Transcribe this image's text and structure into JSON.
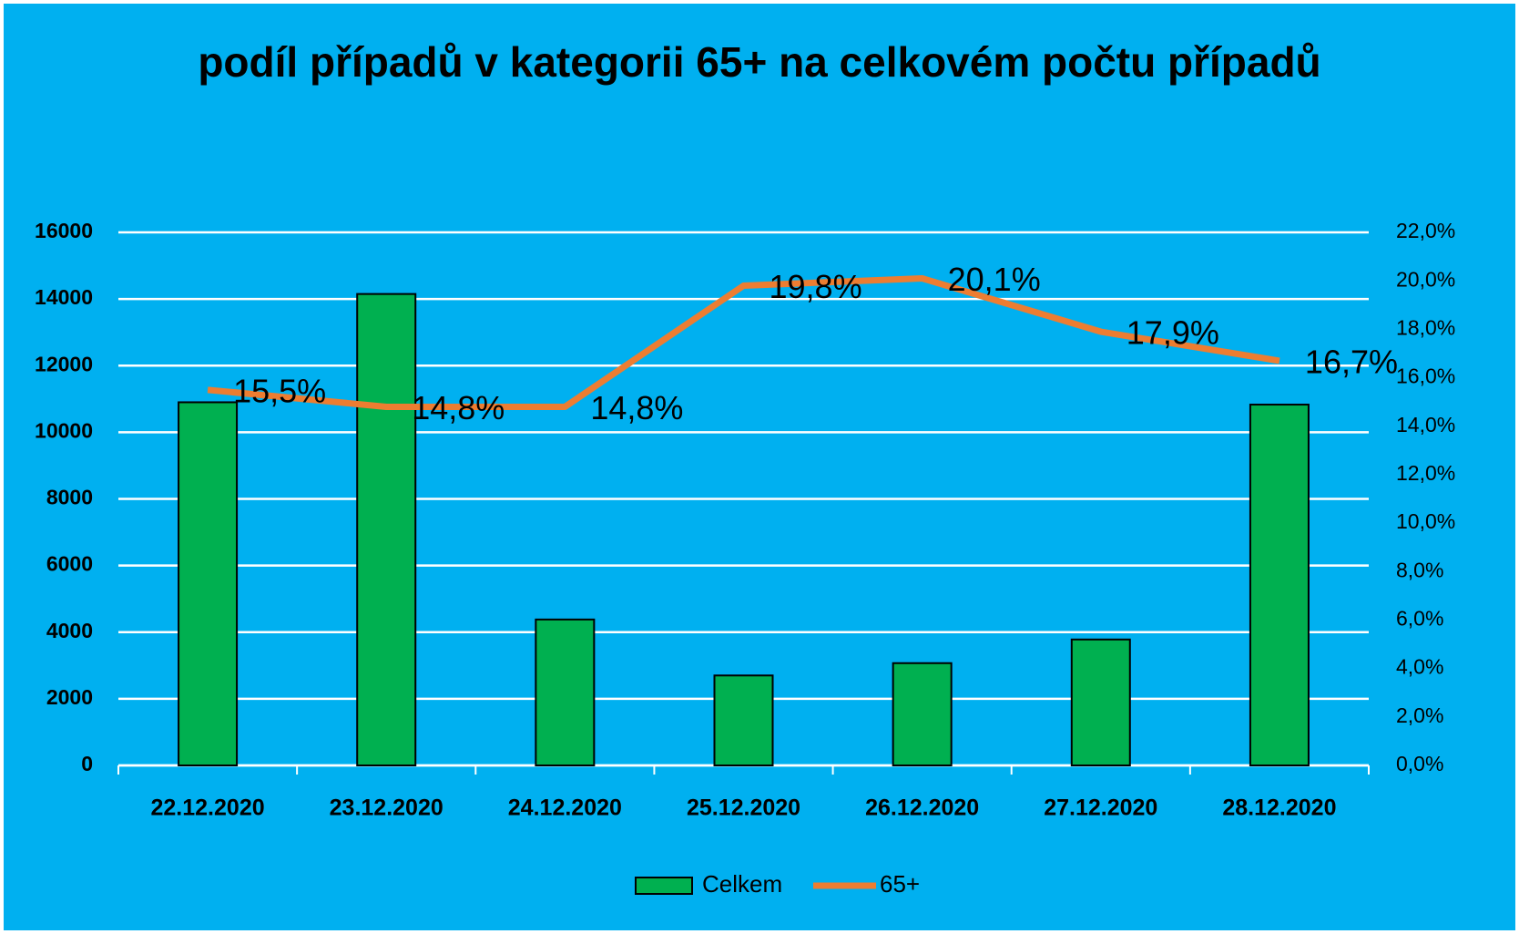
{
  "chart_data": {
    "type": "bar_line",
    "title": "podíl případů v kategorii 65+ na celkovém počtu případů",
    "categories": [
      "22.12.2020",
      "23.12.2020",
      "24.12.2020",
      "25.12.2020",
      "26.12.2020",
      "27.12.2020",
      "28.12.2020"
    ],
    "series": [
      {
        "name": "Celkem",
        "type": "bar",
        "color": "#00b050",
        "values": [
          10900,
          14150,
          4380,
          2700,
          3070,
          3780,
          10830
        ]
      },
      {
        "name": "65+",
        "type": "line",
        "axis": "y2",
        "color": "#ed7d31",
        "values": [
          15.5,
          14.8,
          14.8,
          19.8,
          20.1,
          17.9,
          16.7
        ],
        "value_labels": [
          "15,5%",
          "14,8%",
          "14,8%",
          "19,8%",
          "20,1%",
          "17,9%",
          "16,7%"
        ]
      }
    ],
    "ylim": [
      0,
      16000
    ],
    "yticks": [
      0,
      2000,
      4000,
      6000,
      8000,
      10000,
      12000,
      14000,
      16000
    ],
    "y2lim": [
      0,
      22
    ],
    "y2ticks": [
      {
        "value": 0,
        "label": "0,0%"
      },
      {
        "value": 2,
        "label": "2,0%"
      },
      {
        "value": 4,
        "label": "4,0%"
      },
      {
        "value": 6,
        "label": "6,0%"
      },
      {
        "value": 8,
        "label": "8,0%"
      },
      {
        "value": 10,
        "label": "10,0%"
      },
      {
        "value": 12,
        "label": "12,0%"
      },
      {
        "value": 14,
        "label": "14,0%"
      },
      {
        "value": 16,
        "label": "16,0%"
      },
      {
        "value": 18,
        "label": "18,0%"
      },
      {
        "value": 20,
        "label": "20,0%"
      },
      {
        "value": 22,
        "label": "22,0%"
      }
    ],
    "grid": true,
    "legend": "bottom"
  }
}
